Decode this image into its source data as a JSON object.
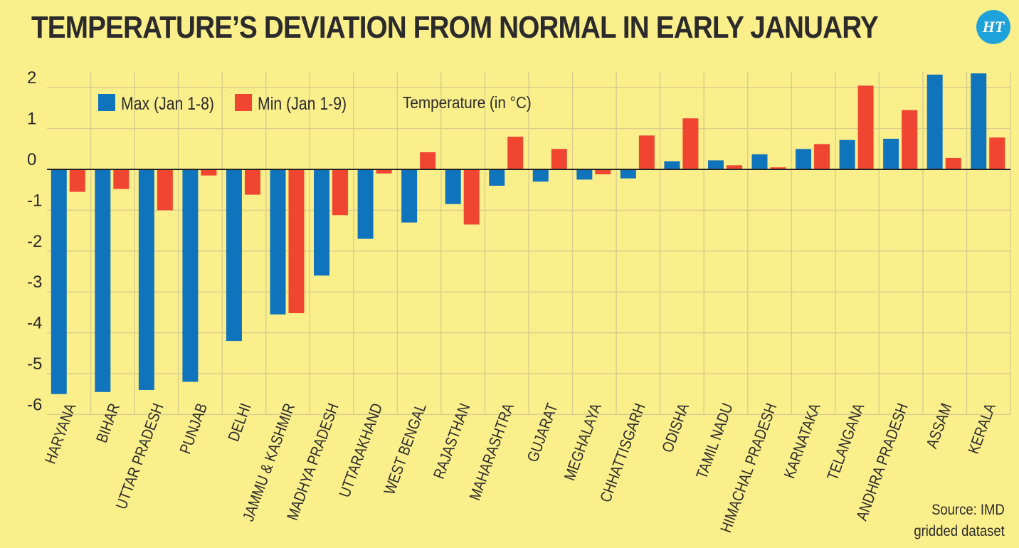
{
  "title": "TEMPERATURE’S DEVIATION FROM NORMAL IN EARLY JANUARY",
  "logo_text": "HT",
  "logo_color": "#1ea2d9",
  "source_line1": "Source: IMD",
  "source_line2": "gridded dataset",
  "chart_data": {
    "type": "bar",
    "title": "TEMPERATURE’S DEVIATION FROM NORMAL IN EARLY JANUARY",
    "ylabel": "Temperature (in °C)",
    "xlabel": "",
    "ylim": [
      -6,
      2.5
    ],
    "yticks": [
      2,
      1,
      0,
      -1,
      -2,
      -3,
      -4,
      -5,
      -6
    ],
    "grid": true,
    "legend_position": "top-left",
    "categories": [
      "HARYANA",
      "BIHAR",
      "UTTAR PRADESH",
      "PUNJAB",
      "DELHI",
      "JAMMU & KASHMIR",
      "MADHYA PRADESH",
      "UTTARAKHAND",
      "WEST BENGAL",
      "RAJASTHAN",
      "MAHARASHTRA",
      "GUJARAT",
      "MEGHALAYA",
      "CHHATTISGARH",
      "ODISHA",
      "TAMIL NADU",
      "HIMACHAL PRADESH",
      "KARNATAKA",
      "TELANGANA",
      "ANDHRA PRADESH",
      "ASSAM",
      "KERALA"
    ],
    "series": [
      {
        "name": "Max (Jan 1-8)",
        "color": "#0f74bc",
        "values": [
          -5.5,
          -5.45,
          -5.4,
          -5.2,
          -4.2,
          -3.55,
          -2.6,
          -1.7,
          -1.3,
          -0.85,
          -0.4,
          -0.3,
          -0.25,
          -0.22,
          0.2,
          0.22,
          0.37,
          0.5,
          0.72,
          0.75,
          2.32,
          2.35
        ]
      },
      {
        "name": "Min (Jan 1-9)",
        "color": "#f04531",
        "values": [
          -0.55,
          -0.48,
          -1.0,
          -0.15,
          -0.62,
          -3.52,
          -1.12,
          -0.1,
          0.42,
          -1.35,
          0.8,
          0.5,
          -0.12,
          0.83,
          1.25,
          0.1,
          0.05,
          0.62,
          2.05,
          1.45,
          0.28,
          0.78
        ]
      }
    ]
  }
}
